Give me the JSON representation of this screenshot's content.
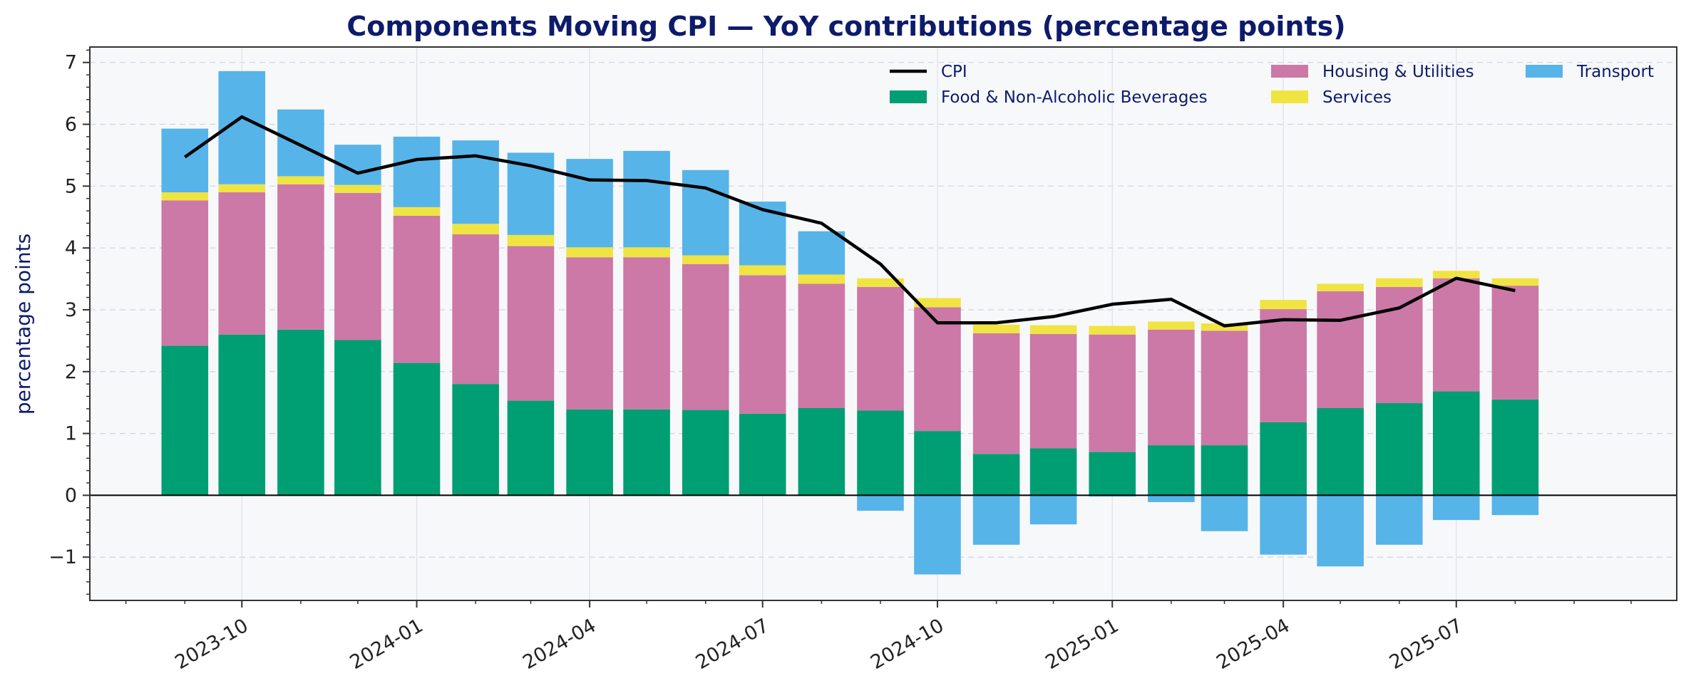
{
  "chart_data": {
    "type": "bar",
    "stacked": true,
    "title": "Components Moving CPI — YoY contributions (percentage points)",
    "ylabel": "percentage points",
    "xlabel": "",
    "ylim": [
      -1.7,
      7.25
    ],
    "yticks": [
      -1,
      0,
      1,
      2,
      3,
      4,
      5,
      6,
      7
    ],
    "ytick_labels": [
      "−1",
      "0",
      "1",
      "2",
      "3",
      "4",
      "5",
      "6",
      "7"
    ],
    "xlim": [
      "2023-07-13",
      "2025-10-25"
    ],
    "xticks": [
      "2023-10-01",
      "2024-01-01",
      "2024-04-01",
      "2024-07-01",
      "2024-10-01",
      "2025-01-01",
      "2025-04-01",
      "2025-07-01"
    ],
    "xtick_labels": [
      "2023-10",
      "2024-01",
      "2024-04",
      "2024-07",
      "2024-10",
      "2025-01",
      "2025-04",
      "2025-07"
    ],
    "grid": true,
    "legend_position": "top-right",
    "dates": [
      "2023-09-01",
      "2023-10-01",
      "2023-11-01",
      "2023-12-01",
      "2024-01-01",
      "2024-02-01",
      "2024-03-01",
      "2024-04-01",
      "2024-05-01",
      "2024-06-01",
      "2024-07-01",
      "2024-08-01",
      "2024-09-01",
      "2024-10-01",
      "2024-11-01",
      "2024-12-01",
      "2025-01-01",
      "2025-02-01",
      "2025-03-01",
      "2025-04-01",
      "2025-05-01",
      "2025-06-01",
      "2025-07-01",
      "2025-08-01"
    ],
    "series": [
      {
        "name": "Food & Non-Alcoholic Beverages",
        "color": "#009E73",
        "values": [
          2.42,
          2.6,
          2.68,
          2.51,
          2.14,
          1.8,
          1.53,
          1.39,
          1.39,
          1.38,
          1.32,
          1.41,
          1.37,
          1.04,
          0.67,
          0.76,
          0.7,
          0.81,
          0.81,
          1.18,
          1.41,
          1.49,
          1.68,
          1.55
        ]
      },
      {
        "name": "Housing & Utilities",
        "color": "#CC79A7",
        "values": [
          2.35,
          2.3,
          2.35,
          2.38,
          2.38,
          2.42,
          2.5,
          2.46,
          2.46,
          2.36,
          2.24,
          2.01,
          2.0,
          2.0,
          1.95,
          1.85,
          1.9,
          1.87,
          1.85,
          1.83,
          1.89,
          1.88,
          1.83,
          1.84
        ]
      },
      {
        "name": "Services",
        "color": "#F0E442",
        "values": [
          0.13,
          0.13,
          0.13,
          0.13,
          0.14,
          0.17,
          0.18,
          0.16,
          0.16,
          0.14,
          0.16,
          0.15,
          0.14,
          0.15,
          0.14,
          0.14,
          0.14,
          0.13,
          0.12,
          0.15,
          0.12,
          0.14,
          0.12,
          0.12
        ]
      },
      {
        "name": "Transport",
        "color": "#56B4E9",
        "values": [
          1.03,
          1.83,
          1.08,
          0.65,
          1.14,
          1.35,
          1.33,
          1.43,
          1.56,
          1.38,
          1.03,
          0.7,
          -0.25,
          -1.28,
          -0.8,
          -0.47,
          -0.02,
          -0.11,
          -0.58,
          -0.96,
          -1.15,
          -0.8,
          -0.4,
          -0.32
        ]
      }
    ],
    "cpi": {
      "name": "CPI",
      "color": "#000000",
      "values": [
        5.47,
        6.12,
        5.66,
        5.21,
        5.43,
        5.49,
        5.33,
        5.1,
        5.09,
        4.97,
        4.62,
        4.4,
        3.74,
        2.79,
        2.79,
        2.89,
        3.09,
        3.17,
        2.74,
        2.84,
        2.83,
        3.03,
        3.51,
        3.31
      ]
    }
  }
}
